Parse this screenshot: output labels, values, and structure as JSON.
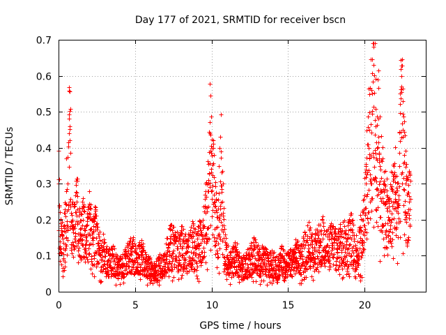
{
  "chart_data": {
    "type": "scatter",
    "title": "Day 177 of 2021, SRMTID for receiver bscn",
    "xlabel": "GPS time / hours",
    "ylabel": "SRMTID / TECUs",
    "xlim": [
      0,
      24
    ],
    "ylim": [
      0,
      0.7
    ],
    "xticks": [
      0,
      5,
      10,
      15,
      20
    ],
    "xtick_labels": [
      "0",
      "5",
      "10",
      "15",
      "20"
    ],
    "yticks": [
      0,
      0.1,
      0.2,
      0.3,
      0.4,
      0.5,
      0.6,
      0.7
    ],
    "ytick_labels": [
      "0",
      "0.1",
      "0.2",
      "0.3",
      "0.4",
      "0.5",
      "0.6",
      "0.7"
    ],
    "grid": true,
    "marker": "+",
    "series_color": "#ff0000",
    "series": [
      {
        "name": "SRMTID",
        "description_of_envelope": "approximately 2800 samples, 0-23 h",
        "x": [
          0.0,
          0.1,
          0.2,
          0.3,
          0.4,
          0.5,
          0.6,
          0.7,
          0.75,
          0.8,
          0.9,
          1.0,
          1.2,
          1.4,
          1.6,
          1.8,
          2.0,
          2.2,
          2.4,
          2.6,
          2.8,
          3.0,
          3.3,
          3.6,
          3.9,
          4.2,
          4.5,
          4.8,
          5.1,
          5.4,
          5.7,
          6.0,
          6.3,
          6.6,
          6.9,
          7.2,
          7.5,
          7.8,
          8.1,
          8.4,
          8.7,
          9.0,
          9.3,
          9.6,
          9.8,
          9.9,
          10.0,
          10.2,
          10.4,
          10.6,
          10.8,
          11.0,
          11.3,
          11.6,
          11.9,
          12.2,
          12.5,
          12.8,
          13.1,
          13.4,
          13.7,
          14.0,
          14.3,
          14.6,
          14.9,
          15.2,
          15.5,
          15.8,
          16.1,
          16.4,
          16.7,
          17.0,
          17.3,
          17.6,
          17.9,
          18.2,
          18.5,
          18.8,
          19.1,
          19.4,
          19.7,
          19.9,
          20.1,
          20.3,
          20.5,
          20.6,
          20.7,
          20.8,
          20.9,
          21.0,
          21.2,
          21.4,
          21.6,
          21.8,
          22.0,
          22.2,
          22.4,
          22.5,
          22.7,
          22.9
        ],
        "y": [
          0.3,
          0.14,
          0.17,
          0.12,
          0.22,
          0.28,
          0.3,
          0.48,
          0.46,
          0.22,
          0.2,
          0.18,
          0.25,
          0.16,
          0.2,
          0.14,
          0.22,
          0.15,
          0.18,
          0.12,
          0.13,
          0.11,
          0.09,
          0.1,
          0.07,
          0.08,
          0.1,
          0.12,
          0.09,
          0.11,
          0.08,
          0.07,
          0.06,
          0.08,
          0.09,
          0.13,
          0.15,
          0.12,
          0.14,
          0.11,
          0.15,
          0.13,
          0.16,
          0.22,
          0.3,
          0.44,
          0.4,
          0.25,
          0.18,
          0.39,
          0.15,
          0.1,
          0.09,
          0.11,
          0.07,
          0.08,
          0.1,
          0.12,
          0.09,
          0.1,
          0.08,
          0.09,
          0.07,
          0.1,
          0.08,
          0.09,
          0.11,
          0.1,
          0.13,
          0.15,
          0.12,
          0.14,
          0.16,
          0.13,
          0.15,
          0.12,
          0.16,
          0.14,
          0.17,
          0.12,
          0.15,
          0.2,
          0.3,
          0.45,
          0.55,
          0.68,
          0.46,
          0.4,
          0.48,
          0.35,
          0.3,
          0.25,
          0.2,
          0.28,
          0.32,
          0.22,
          0.6,
          0.45,
          0.3,
          0.25
        ]
      }
    ]
  }
}
